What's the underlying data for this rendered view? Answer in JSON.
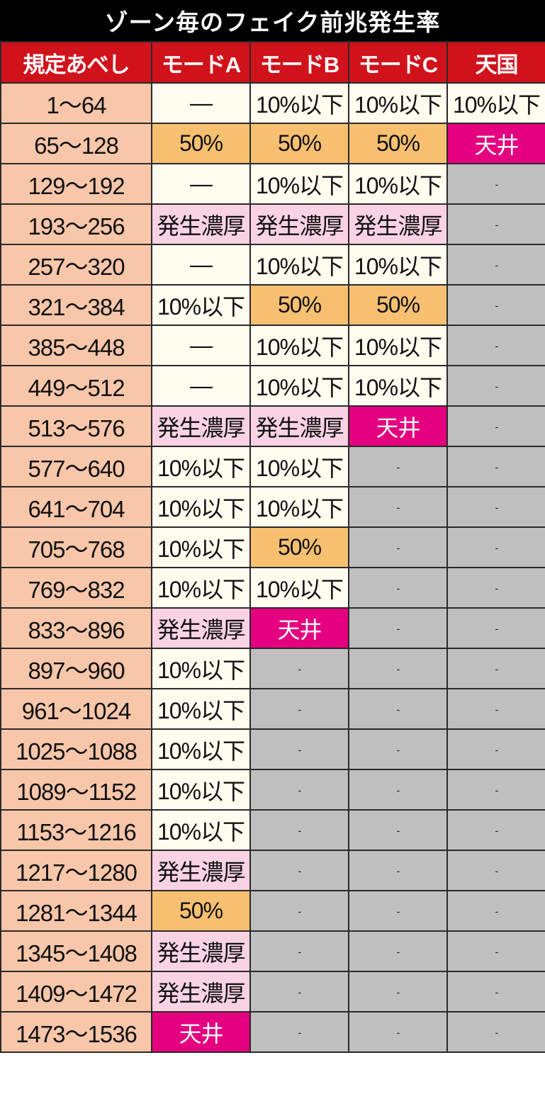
{
  "title": "ゾーン毎のフェイク前兆発生率",
  "headers": [
    "規定あべし",
    "モードA",
    "モードB",
    "モードC",
    "天国"
  ],
  "colors": {
    "title_bg": "#000000",
    "header_bg": "#d0121b",
    "range_bg": "#f8c6a9",
    "plain_bg": "#fffdf0",
    "fifty_bg": "#f7c070",
    "strong_bg": "#f9d2e3",
    "ceiling_bg": "#e4007f",
    "unavailable_bg": "#bfbfbf"
  },
  "rows": [
    {
      "range": "1～64",
      "cells": [
        "—",
        "10%以下",
        "10%以下",
        "10%以下"
      ]
    },
    {
      "range": "65～128",
      "cells": [
        "50%",
        "50%",
        "50%",
        "天井"
      ]
    },
    {
      "range": "129～192",
      "cells": [
        "—",
        "10%以下",
        "10%以下",
        "-"
      ]
    },
    {
      "range": "193～256",
      "cells": [
        "発生濃厚",
        "発生濃厚",
        "発生濃厚",
        "-"
      ]
    },
    {
      "range": "257～320",
      "cells": [
        "—",
        "10%以下",
        "10%以下",
        "-"
      ]
    },
    {
      "range": "321～384",
      "cells": [
        "10%以下",
        "50%",
        "50%",
        "-"
      ]
    },
    {
      "range": "385～448",
      "cells": [
        "—",
        "10%以下",
        "10%以下",
        "-"
      ]
    },
    {
      "range": "449～512",
      "cells": [
        "—",
        "10%以下",
        "10%以下",
        "-"
      ]
    },
    {
      "range": "513～576",
      "cells": [
        "発生濃厚",
        "発生濃厚",
        "天井",
        "-"
      ]
    },
    {
      "range": "577～640",
      "cells": [
        "10%以下",
        "10%以下",
        "-",
        "-"
      ]
    },
    {
      "range": "641～704",
      "cells": [
        "10%以下",
        "10%以下",
        "-",
        "-"
      ]
    },
    {
      "range": "705～768",
      "cells": [
        "10%以下",
        "50%",
        "-",
        "-"
      ]
    },
    {
      "range": "769～832",
      "cells": [
        "10%以下",
        "10%以下",
        "-",
        "-"
      ]
    },
    {
      "range": "833～896",
      "cells": [
        "発生濃厚",
        "天井",
        "-",
        "-"
      ]
    },
    {
      "range": "897～960",
      "cells": [
        "10%以下",
        "-",
        "-",
        "-"
      ]
    },
    {
      "range": "961～1024",
      "cells": [
        "10%以下",
        "-",
        "-",
        "-"
      ]
    },
    {
      "range": "1025～1088",
      "cells": [
        "10%以下",
        "-",
        "-",
        "-"
      ]
    },
    {
      "range": "1089～1152",
      "cells": [
        "10%以下",
        "-",
        "-",
        "-"
      ]
    },
    {
      "range": "1153～1216",
      "cells": [
        "10%以下",
        "-",
        "-",
        "-"
      ]
    },
    {
      "range": "1217～1280",
      "cells": [
        "発生濃厚",
        "-",
        "-",
        "-"
      ]
    },
    {
      "range": "1281～1344",
      "cells": [
        "50%",
        "-",
        "-",
        "-"
      ]
    },
    {
      "range": "1345～1408",
      "cells": [
        "発生濃厚",
        "-",
        "-",
        "-"
      ]
    },
    {
      "range": "1409～1472",
      "cells": [
        "発生濃厚",
        "-",
        "-",
        "-"
      ]
    },
    {
      "range": "1473～1536",
      "cells": [
        "天井",
        "-",
        "-",
        "-"
      ]
    }
  ]
}
